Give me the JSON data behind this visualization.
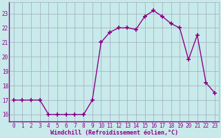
{
  "x": [
    0,
    1,
    2,
    3,
    4,
    5,
    6,
    7,
    8,
    9,
    10,
    11,
    12,
    13,
    14,
    15,
    16,
    17,
    18,
    19,
    20,
    21,
    22,
    23
  ],
  "y": [
    17,
    17,
    17,
    17,
    16,
    16,
    16,
    16,
    16,
    17,
    21,
    21.7,
    22,
    22,
    21.9,
    22.8,
    23.2,
    22.8,
    22.3,
    22,
    19.8,
    21.5,
    18.2,
    17.5
  ],
  "line_color": "#8b008b",
  "marker": "+",
  "marker_size": 4,
  "marker_lw": 1.2,
  "line_width": 1.0,
  "bg_color": "#c8eaea",
  "grid_color": "#a0a8c0",
  "xlabel": "Windchill (Refroidissement éolien,°C)",
  "xlabel_color": "#8b008b",
  "xlabel_fontsize": 6.0,
  "xlabel_weight": "bold",
  "tick_color": "#8b008b",
  "tick_fontsize": 5.5,
  "ylim": [
    15.5,
    23.8
  ],
  "xlim": [
    -0.5,
    23.5
  ],
  "yticks": [
    16,
    17,
    18,
    19,
    20,
    21,
    22,
    23
  ],
  "xticks": [
    0,
    1,
    2,
    3,
    4,
    5,
    6,
    7,
    8,
    9,
    10,
    11,
    12,
    13,
    14,
    15,
    16,
    17,
    18,
    19,
    20,
    21,
    22,
    23
  ]
}
